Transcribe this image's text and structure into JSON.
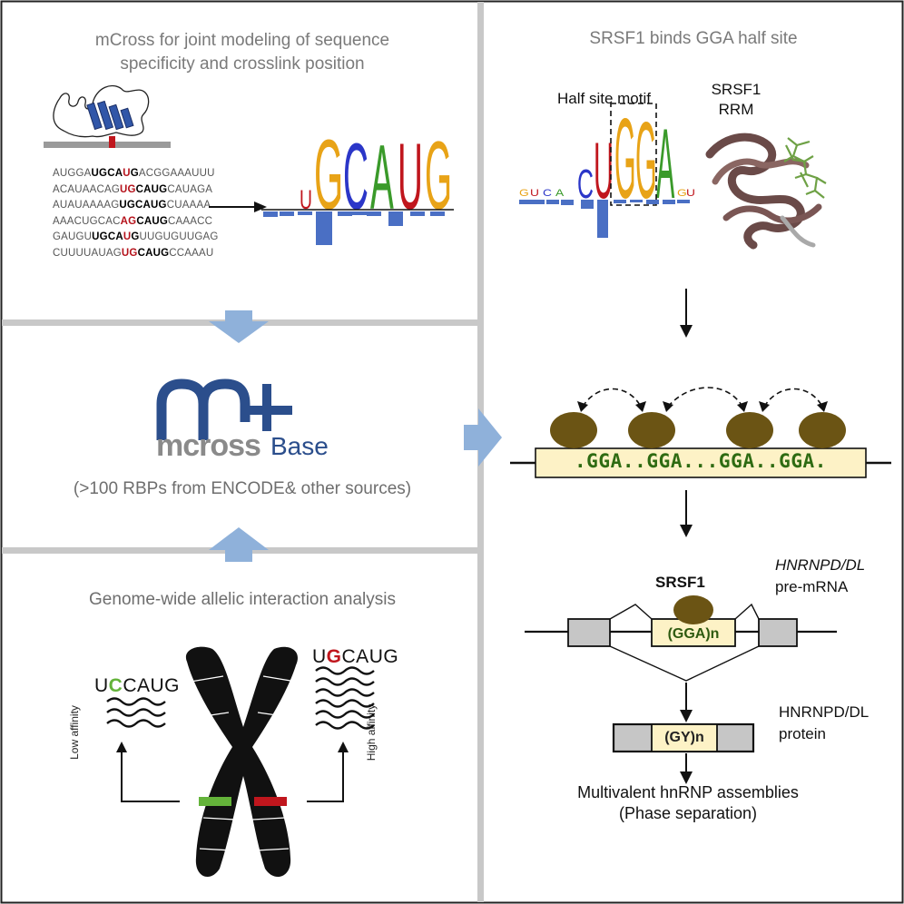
{
  "left_top": {
    "title_line1": "mCross for joint modeling of sequence",
    "title_line2": "specificity and crosslink position",
    "sequences": [
      [
        "AUGGA",
        "",
        "UGCAUG",
        "",
        "ACGGAAAUUU"
      ],
      [
        "ACAUAACAG",
        "UG",
        "CAUG",
        "",
        "CAUAGA"
      ],
      [
        "AUAUAAAAG",
        "",
        "UGCAUG",
        "",
        "CUAAAA"
      ],
      [
        "AAACUGCAC",
        "AG",
        "CAUG",
        "",
        "CAAACC"
      ],
      [
        "GAUGU",
        "",
        "UGCAUG",
        "",
        "UUGUGUUGAG"
      ],
      [
        "CUUUUAUAG",
        "UG",
        "CAUG",
        "",
        "CCAAAU"
      ]
    ],
    "logo_letters": "UGCAUG"
  },
  "left_mid": {
    "logo_word": "mcross",
    "logo_suffix": "Base",
    "caption": "(>100 RBPs from ENCODE& other sources)"
  },
  "left_bottom": {
    "title": "Genome-wide allelic interaction analysis",
    "low_seq_prefix": "U",
    "low_seq_var": "C",
    "low_seq_suffix": "CAUG",
    "high_seq_prefix": "U",
    "high_seq_var": "G",
    "high_seq_suffix": "CAUG",
    "low_label": "Low affinity",
    "high_label": "High affinity"
  },
  "right": {
    "title": "SRSF1 binds GGA half site",
    "half_site_label": "Half site motif",
    "srsf1_rrm_line1": "SRSF1",
    "srsf1_rrm_line2": "RRM",
    "motif_letters": "UGGA",
    "motif_prefix": "C",
    "gga_strip": ".GGA..GGA...GGA..GGA.",
    "srsf1_label": "SRSF1",
    "exon_label": "(GGA)n",
    "gene_italic": "HNRNPD/DL",
    "premrna": "pre-mRNA",
    "protein_label_line1": "HNRNPD/DL",
    "protein_label_line2": "protein",
    "protein_domain": "(GY)n",
    "outcome_line1": "Multivalent hnRNP assemblies",
    "outcome_line2": "(Phase separation)"
  },
  "colors": {
    "grid_gray": "#c6c6c6",
    "arrow_blue": "#8fb1da",
    "logo_blue": "#2b4e8c",
    "logo_gray": "#8a8a8a",
    "gga_green": "#2e6b12",
    "blob_brown": "#6b5414",
    "exon_fill": "#fdf2c6",
    "allele_green": "#64b33a",
    "allele_red": "#c0161d"
  }
}
